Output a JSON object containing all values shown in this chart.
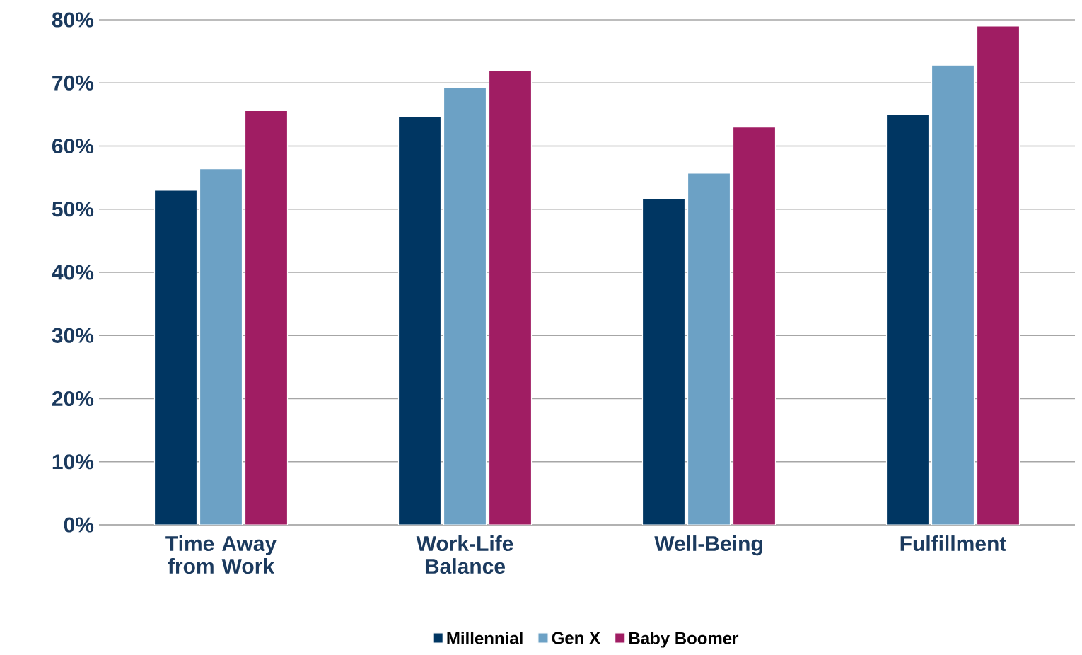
{
  "chart_data": {
    "type": "bar",
    "categories": [
      "Time Away from Work",
      "Work-Life Balance",
      "Well-Being",
      "Fulfillment"
    ],
    "series": [
      {
        "name": "Millennial",
        "color": "#003662",
        "values": [
          53.0,
          64.7,
          51.7,
          65.0
        ]
      },
      {
        "name": "Gen X",
        "color": "#6ca1c5",
        "values": [
          56.4,
          69.3,
          55.7,
          72.8
        ]
      },
      {
        "name": "Baby Boomer",
        "color": "#a01d63",
        "values": [
          65.6,
          71.9,
          63.0,
          79.0
        ]
      }
    ],
    "ylim": [
      0,
      80
    ],
    "yticks": [
      {
        "value": 0,
        "label": "0%"
      },
      {
        "value": 10,
        "label": "10%"
      },
      {
        "value": 20,
        "label": "20%"
      },
      {
        "value": 30,
        "label": "30%"
      },
      {
        "value": 40,
        "label": "40%"
      },
      {
        "value": 50,
        "label": "50%"
      },
      {
        "value": 60,
        "label": "60%"
      },
      {
        "value": 70,
        "label": "70%"
      },
      {
        "value": 80,
        "label": "80%"
      }
    ],
    "grid": "y",
    "legend": "bottom"
  }
}
